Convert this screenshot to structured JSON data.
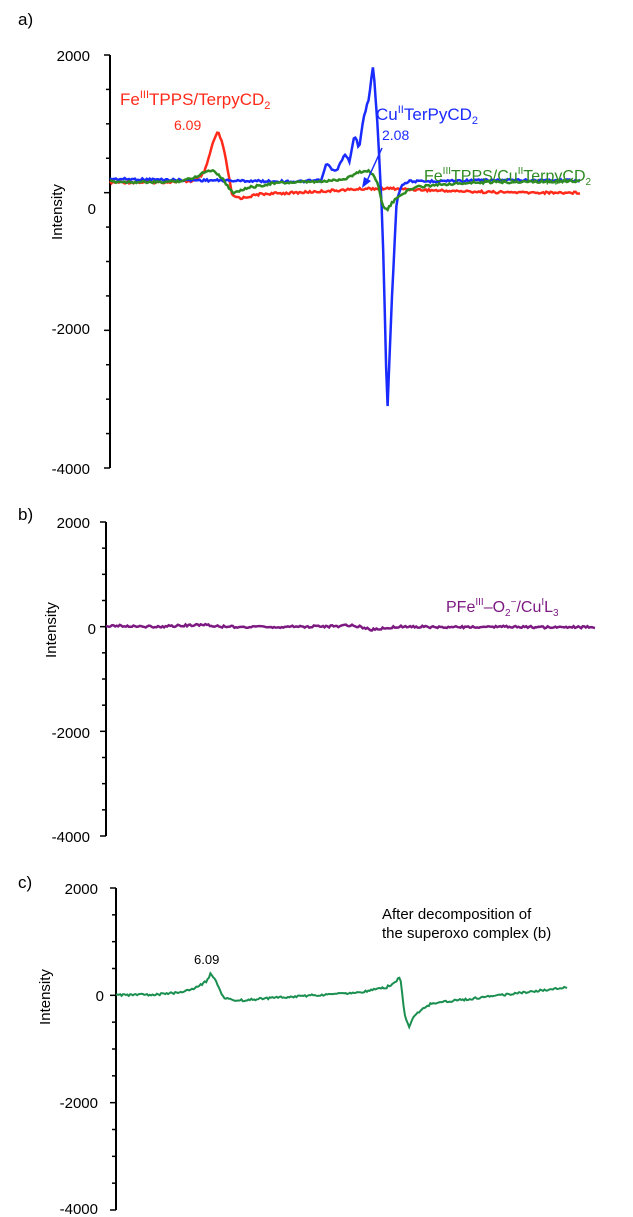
{
  "chart_data": [
    {
      "panel_label": "a)",
      "type": "line",
      "ylabel": "Intensity",
      "ylim": [
        -4000,
        2000
      ],
      "yticks": [
        "2000",
        "0",
        "-2000",
        "-4000"
      ],
      "colors": {
        "fe": "#ff2a1a",
        "cu": "#1a2bff",
        "combo": "#2e8b22"
      },
      "series": [
        {
          "name_parts": [
            "Fe",
            "III",
            "TPPS/TerpyCD",
            "2"
          ],
          "color": "#ff2a1a",
          "x": [
            0.0,
            0.1,
            0.18,
            0.2,
            0.21,
            0.22,
            0.23,
            0.24,
            0.25,
            0.26,
            0.28,
            0.32,
            0.4,
            0.5,
            0.55,
            0.6,
            0.7,
            0.8,
            0.9,
            1.0
          ],
          "values": [
            150,
            150,
            170,
            280,
            500,
            750,
            880,
            700,
            350,
            -50,
            -80,
            -20,
            0,
            40,
            60,
            60,
            30,
            10,
            0,
            0
          ]
        },
        {
          "name_parts": [
            "Cu",
            "II",
            "TerPyCD",
            "2"
          ],
          "color": "#1a2bff",
          "annotation": "2.08",
          "x": [
            0.0,
            0.2,
            0.4,
            0.45,
            0.46,
            0.48,
            0.5,
            0.51,
            0.52,
            0.53,
            0.54,
            0.55,
            0.56,
            0.57,
            0.58,
            0.59,
            0.6,
            0.61,
            0.62,
            0.63,
            0.64,
            0.66,
            0.7,
            0.8,
            0.9,
            1.0
          ],
          "values": [
            200,
            180,
            160,
            180,
            420,
            300,
            550,
            450,
            850,
            650,
            1100,
            1350,
            1850,
            900,
            -500,
            -3200,
            -1500,
            -100,
            100,
            150,
            170,
            160,
            170,
            180,
            180,
            180
          ]
        },
        {
          "name_parts": [
            "Fe",
            "III",
            "TPPS/Cu",
            "II",
            "TerpyCD",
            "2"
          ],
          "color": "#2e8b22",
          "x": [
            0.0,
            0.1,
            0.15,
            0.18,
            0.2,
            0.22,
            0.24,
            0.26,
            0.3,
            0.35,
            0.4,
            0.45,
            0.5,
            0.53,
            0.55,
            0.56,
            0.57,
            0.58,
            0.59,
            0.6,
            0.62,
            0.65,
            0.7,
            0.8,
            0.9,
            1.0
          ],
          "values": [
            160,
            150,
            170,
            220,
            300,
            330,
            200,
            0,
            80,
            140,
            150,
            160,
            200,
            300,
            320,
            250,
            150,
            -200,
            -250,
            -150,
            -20,
            80,
            120,
            150,
            160,
            170
          ]
        }
      ],
      "annotations": [
        {
          "text": "6.09"
        },
        {
          "text": "2.08"
        }
      ]
    },
    {
      "panel_label": "b)",
      "type": "line",
      "ylabel": "Intensity",
      "ylim": [
        -4000,
        2000
      ],
      "yticks": [
        "2000",
        "0",
        "-2000",
        "-4000"
      ],
      "series": [
        {
          "name_parts": [
            "PFe",
            "III",
            "–O",
            "2",
            "−",
            "/Cu",
            "I",
            "L",
            "3"
          ],
          "color": "#7d1a82",
          "x": [
            0.0,
            0.1,
            0.18,
            0.2,
            0.24,
            0.3,
            0.4,
            0.48,
            0.5,
            0.52,
            0.54,
            0.55,
            0.58,
            0.6,
            0.7,
            0.8,
            0.9,
            1.0
          ],
          "values": [
            20,
            0,
            30,
            40,
            0,
            -10,
            0,
            10,
            30,
            0,
            -60,
            -50,
            -20,
            0,
            -10,
            0,
            -10,
            -10
          ]
        }
      ]
    },
    {
      "panel_label": "c)",
      "type": "line",
      "ylabel": "Intensity",
      "ylim": [
        -4000,
        2000
      ],
      "yticks": [
        "2000",
        "0",
        "-2000",
        "-4000"
      ],
      "series": [
        {
          "color": "#1a8f50",
          "x": [
            0.0,
            0.1,
            0.15,
            0.18,
            0.2,
            0.21,
            0.22,
            0.23,
            0.24,
            0.26,
            0.3,
            0.4,
            0.5,
            0.55,
            0.6,
            0.62,
            0.63,
            0.64,
            0.65,
            0.66,
            0.68,
            0.7,
            0.8,
            0.9,
            1.0
          ],
          "values": [
            0,
            20,
            60,
            160,
            260,
            400,
            300,
            100,
            -50,
            -100,
            -80,
            -20,
            30,
            70,
            150,
            250,
            350,
            -350,
            -600,
            -400,
            -250,
            -150,
            -50,
            50,
            150
          ]
        }
      ],
      "annotation_title": [
        "After decomposition of",
        "the superoxo complex (b)"
      ],
      "annotations": [
        {
          "text": "6.09"
        }
      ]
    }
  ]
}
